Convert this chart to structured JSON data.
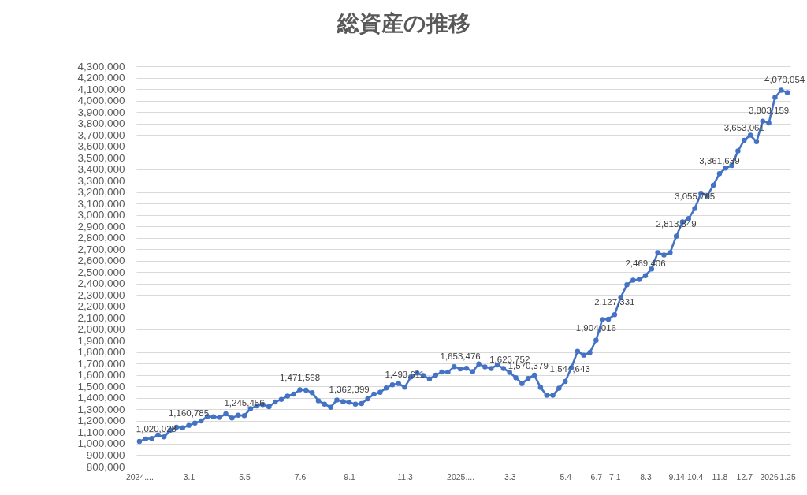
{
  "chart_data": {
    "type": "line",
    "title": "総資産の推移",
    "categories": [
      "2024....",
      null,
      null,
      null,
      null,
      null,
      null,
      null,
      "3.1",
      null,
      null,
      null,
      null,
      null,
      null,
      null,
      null,
      "5.5",
      null,
      null,
      null,
      null,
      null,
      null,
      null,
      null,
      "7.6",
      null,
      null,
      null,
      null,
      null,
      null,
      null,
      "9.1",
      null,
      null,
      null,
      null,
      null,
      null,
      null,
      null,
      "11.3",
      null,
      null,
      null,
      null,
      null,
      null,
      null,
      null,
      "2025....",
      null,
      null,
      null,
      null,
      null,
      null,
      null,
      "3.3",
      null,
      null,
      null,
      null,
      null,
      null,
      null,
      null,
      "5.4",
      null,
      null,
      null,
      null,
      "6.7",
      null,
      null,
      "7.1",
      null,
      null,
      null,
      null,
      "8.3",
      null,
      null,
      null,
      null,
      "9.14",
      null,
      null,
      "10.4",
      null,
      null,
      null,
      "11.8",
      null,
      null,
      null,
      "12.7",
      null,
      null,
      null,
      "2026",
      null,
      null,
      "1.25"
    ],
    "values": [
      1020028,
      1042000,
      1046000,
      1076000,
      1060000,
      1118000,
      1145000,
      1139000,
      1160785,
      1180000,
      1199000,
      1238000,
      1236000,
      1231000,
      1261000,
      1226000,
      1249000,
      1245456,
      1307000,
      1330000,
      1342000,
      1323000,
      1365000,
      1388000,
      1416000,
      1434000,
      1471568,
      1469000,
      1446000,
      1376000,
      1346000,
      1319000,
      1383000,
      1369000,
      1362399,
      1346000,
      1351000,
      1393000,
      1434000,
      1449000,
      1488000,
      1515000,
      1526000,
      1493611,
      1584000,
      1619000,
      1596000,
      1566000,
      1600000,
      1626000,
      1626000,
      1674000,
      1653476,
      1660000,
      1630000,
      1697000,
      1672000,
      1658000,
      1688000,
      1658000,
      1623752,
      1577000,
      1526000,
      1570379,
      1600000,
      1492000,
      1423000,
      1423000,
      1485000,
      1544643,
      1665000,
      1808000,
      1774000,
      1798000,
      1904016,
      2085000,
      2089000,
      2127331,
      2279000,
      2390000,
      2429000,
      2436000,
      2469406,
      2528000,
      2671000,
      2650000,
      2671000,
      2813849,
      2939000,
      2968000,
      3055785,
      3189000,
      3166000,
      3259000,
      3361639,
      3409000,
      3432000,
      3559000,
      3653061,
      3697000,
      3640000,
      3820000,
      3803159,
      4028000,
      4090000,
      4070054
    ],
    "value_labels": [
      "1,020,028",
      null,
      null,
      null,
      null,
      null,
      null,
      null,
      "1,160,785",
      null,
      null,
      null,
      null,
      null,
      null,
      null,
      null,
      "1,245,456",
      null,
      null,
      null,
      null,
      null,
      null,
      null,
      null,
      "1,471,568",
      null,
      null,
      null,
      null,
      null,
      null,
      null,
      "1,362,399",
      null,
      null,
      null,
      null,
      null,
      null,
      null,
      null,
      "1,493,611",
      null,
      null,
      null,
      null,
      null,
      null,
      null,
      null,
      "1,653,476",
      null,
      null,
      null,
      null,
      null,
      null,
      null,
      "1,623,752",
      null,
      null,
      "1,570,379",
      null,
      null,
      null,
      null,
      null,
      "1,544,643",
      null,
      null,
      null,
      null,
      "1,904,016",
      null,
      null,
      "2,127,331",
      null,
      null,
      null,
      null,
      "2,469,406",
      null,
      null,
      null,
      null,
      "2,813,849",
      null,
      null,
      "3,055,785",
      null,
      null,
      null,
      "3,361,639",
      null,
      null,
      null,
      "3,653,061",
      null,
      null,
      null,
      "3,803,159",
      null,
      null,
      "4,070,054"
    ],
    "color": "#4472c4",
    "ylim": [
      800000,
      4300000
    ],
    "yticks": [
      {
        "value": 800000,
        "label": "800,000"
      },
      {
        "value": 900000,
        "label": "900,000"
      },
      {
        "value": 1000000,
        "label": "1,000,000"
      },
      {
        "value": 1100000,
        "label": "1,100,000"
      },
      {
        "value": 1200000,
        "label": "1,200,000"
      },
      {
        "value": 1300000,
        "label": "1,300,000"
      },
      {
        "value": 1400000,
        "label": "1,400,000"
      },
      {
        "value": 1500000,
        "label": "1,500,000"
      },
      {
        "value": 1600000,
        "label": "1,600,000"
      },
      {
        "value": 1700000,
        "label": "1,700,000"
      },
      {
        "value": 1800000,
        "label": "1,800,000"
      },
      {
        "value": 1900000,
        "label": "1,900,000"
      },
      {
        "value": 2000000,
        "label": "2,000,000"
      },
      {
        "value": 2100000,
        "label": "2,100,000"
      },
      {
        "value": 2200000,
        "label": "2,200,000"
      },
      {
        "value": 2300000,
        "label": "2,300,000"
      },
      {
        "value": 2400000,
        "label": "2,400,000"
      },
      {
        "value": 2500000,
        "label": "2,500,000"
      },
      {
        "value": 2600000,
        "label": "2,600,000"
      },
      {
        "value": 2700000,
        "label": "2,700,000"
      },
      {
        "value": 2800000,
        "label": "2,800,000"
      },
      {
        "value": 2900000,
        "label": "2,900,000"
      },
      {
        "value": 3000000,
        "label": "3,000,000"
      },
      {
        "value": 3100000,
        "label": "3,100,000"
      },
      {
        "value": 3200000,
        "label": "3,200,000"
      },
      {
        "value": 3300000,
        "label": "3,300,000"
      },
      {
        "value": 3400000,
        "label": "3,400,000"
      },
      {
        "value": 3500000,
        "label": "3,500,000"
      },
      {
        "value": 3600000,
        "label": "3,600,000"
      },
      {
        "value": 3700000,
        "label": "3,700,000"
      },
      {
        "value": 3800000,
        "label": "3,800,000"
      },
      {
        "value": 3900000,
        "label": "3,900,000"
      },
      {
        "value": 4000000,
        "label": "4,000,000"
      },
      {
        "value": 4100000,
        "label": "4,100,000"
      },
      {
        "value": 4200000,
        "label": "4,200,000"
      },
      {
        "value": 4300000,
        "label": "4,300,000"
      }
    ],
    "grid": "y",
    "marker": "circle",
    "line_style": "solid"
  }
}
